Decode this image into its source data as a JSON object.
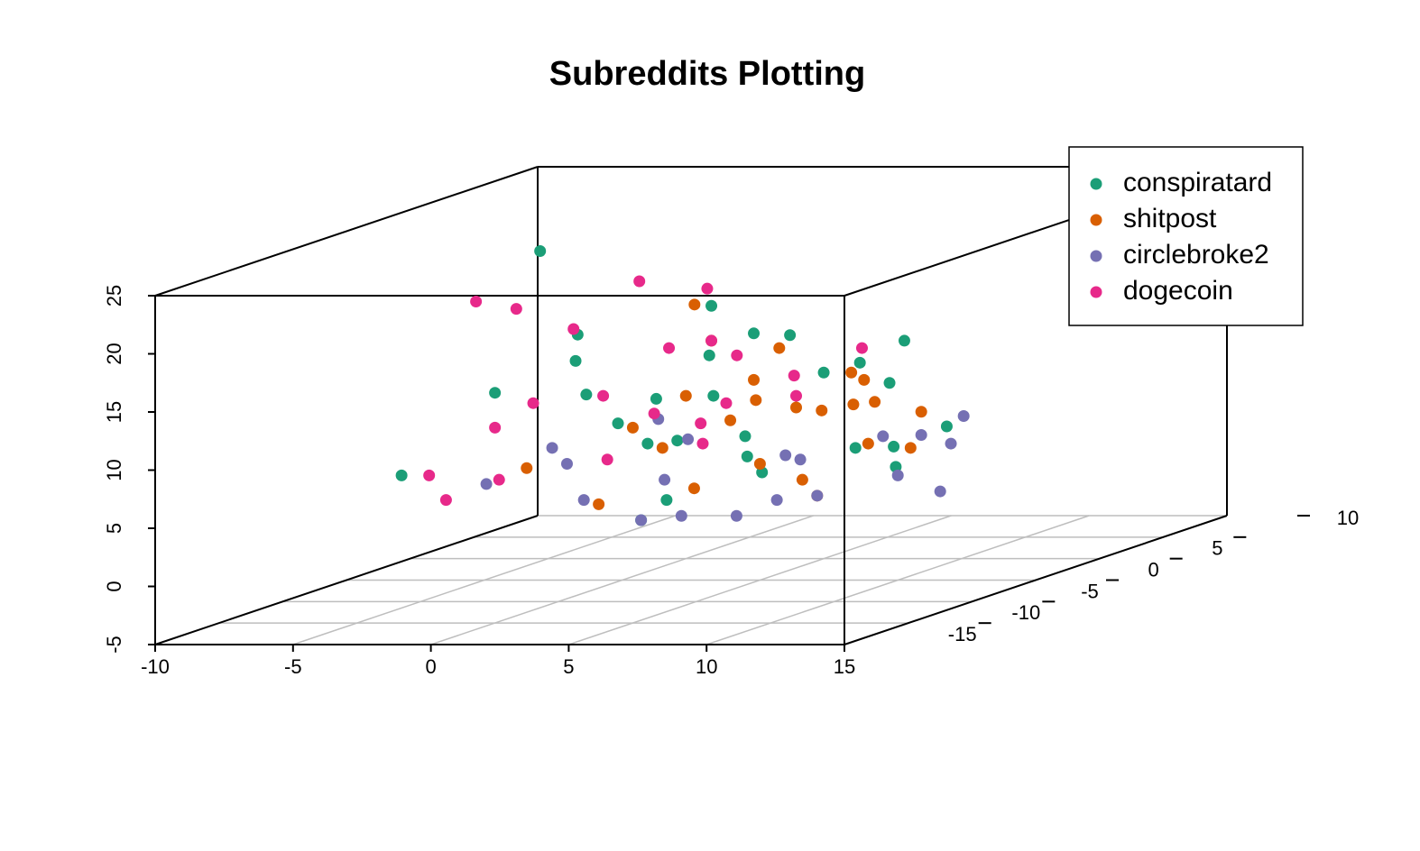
{
  "chart_data": {
    "type": "scatter3d",
    "title": "Subreddits Plotting",
    "xlim": [
      -10,
      15
    ],
    "ylim": [
      -20,
      10
    ],
    "zlim": [
      -5,
      25
    ],
    "xticks": [
      -10,
      -5,
      0,
      5,
      10,
      15
    ],
    "yticks": [
      -15,
      -10,
      -5,
      0,
      5,
      10
    ],
    "zticks": [
      -5,
      0,
      5,
      10,
      15,
      20,
      25
    ],
    "grid": true,
    "legend": "topright",
    "series": [
      {
        "name": "conspiratard",
        "color": "#1b9e77",
        "x": [
          -7.6,
          -8,
          -6,
          -4,
          -2,
          0,
          2,
          4,
          6,
          8,
          3,
          -1,
          5,
          7,
          1,
          -3,
          9,
          9,
          4,
          2,
          6,
          -5,
          0,
          8,
          3,
          1,
          -2,
          5
        ],
        "y": [
          5,
          -5,
          -2,
          0,
          2,
          -3,
          1,
          -4,
          3,
          -1,
          -8,
          4,
          -6,
          2,
          0,
          -2,
          -3,
          1,
          5,
          -5,
          -7,
          3,
          2,
          -4,
          -10,
          6,
          -1,
          0
        ],
        "z": [
          19.6,
          4,
          10,
          12,
          8,
          6,
          14,
          7,
          9,
          5,
          3,
          11,
          6,
          13,
          9,
          15,
          4,
          6,
          10,
          7,
          5,
          8,
          16,
          6,
          2,
          12,
          7,
          11
        ]
      },
      {
        "name": "shitpost",
        "color": "#d95f02",
        "x": [
          -3,
          -1,
          0,
          1,
          2,
          3,
          4,
          5,
          6,
          7,
          8,
          9,
          10,
          2,
          4,
          6,
          -2,
          1,
          3,
          5,
          7,
          0,
          8,
          4
        ],
        "y": [
          -6,
          -2,
          0,
          -4,
          1,
          -3,
          2,
          -5,
          0,
          -2,
          -7,
          -1,
          -4,
          3,
          -8,
          1,
          5,
          -9,
          -1,
          4,
          -6,
          2,
          -3,
          0
        ],
        "z": [
          5,
          7,
          9,
          6,
          10,
          8,
          7,
          5,
          11,
          9,
          3,
          8,
          6,
          12,
          4,
          10,
          15,
          3,
          9,
          7,
          4,
          13,
          6,
          8
        ]
      },
      {
        "name": "circlebroke2",
        "color": "#7570b3",
        "x": [
          -4,
          -2,
          0,
          2,
          4,
          6,
          8,
          10,
          11,
          12,
          1,
          3,
          5,
          7,
          9,
          -3,
          -1,
          6,
          9,
          11
        ],
        "y": [
          -7,
          -5,
          -8,
          -6,
          -9,
          -4,
          -7,
          -5,
          -3,
          -6,
          -2,
          -10,
          -3,
          -8,
          -1,
          -4,
          0,
          -9,
          -4,
          -2
        ],
        "z": [
          4,
          5,
          3,
          4,
          2,
          5,
          3,
          4,
          6,
          3,
          6,
          2,
          5,
          3,
          6,
          6,
          7,
          2,
          7,
          8
        ]
      },
      {
        "name": "dogecoin",
        "color": "#e7298a",
        "x": [
          -9,
          -8,
          -6,
          -5,
          -4,
          -3,
          -2,
          -1,
          0,
          1,
          2,
          3,
          -7,
          -5,
          -2,
          0,
          4,
          5,
          -4,
          -6,
          1,
          -3
        ],
        "y": [
          3,
          4,
          -2,
          2,
          5,
          0,
          3,
          -4,
          4,
          1,
          -3,
          2,
          -5,
          -8,
          6,
          2,
          0,
          3,
          -6,
          1,
          -1,
          4
        ],
        "z": [
          16,
          15,
          7,
          14,
          17,
          9,
          12,
          5,
          11,
          8,
          6,
          10,
          4,
          3,
          16,
          13,
          9,
          12,
          4,
          8,
          7,
          6
        ]
      }
    ]
  }
}
